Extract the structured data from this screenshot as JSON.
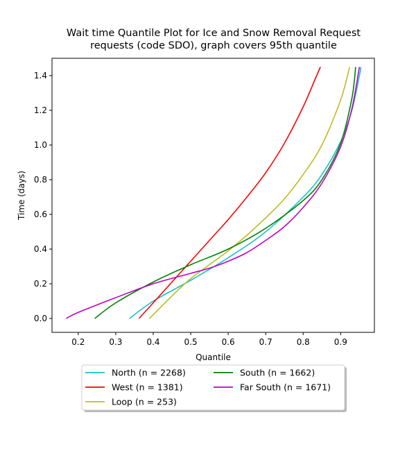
{
  "chart_data": {
    "type": "line",
    "title": "Wait time Quantile Plot for Ice and Snow Removal Request",
    "subtitle": "requests (code SDO), graph covers 95th quantile",
    "xlabel": "Quantile",
    "ylabel": "Time (days)",
    "xlim": [
      0.13,
      0.99
    ],
    "ylim": [
      -0.08,
      1.5
    ],
    "xticks": [
      "0.2",
      "0.3",
      "0.4",
      "0.5",
      "0.6",
      "0.7",
      "0.8",
      "0.9"
    ],
    "yticks": [
      "0.0",
      "0.2",
      "0.4",
      "0.6",
      "0.8",
      "1.0",
      "1.2",
      "1.4"
    ],
    "grid": false,
    "legend_position": "below-center",
    "series": [
      {
        "name": "North (n = 2268)",
        "color": "#17becf",
        "points": [
          [
            0.337,
            0.0
          ],
          [
            0.4,
            0.1
          ],
          [
            0.5,
            0.22
          ],
          [
            0.6,
            0.35
          ],
          [
            0.7,
            0.5
          ],
          [
            0.8,
            0.7
          ],
          [
            0.85,
            0.83
          ],
          [
            0.9,
            1.02
          ],
          [
            0.93,
            1.2
          ],
          [
            0.95,
            1.4
          ],
          [
            0.954,
            1.45
          ]
        ]
      },
      {
        "name": "West (n = 1381)",
        "color": "#ff0000",
        "points": [
          [
            0.362,
            0.0
          ],
          [
            0.4,
            0.09
          ],
          [
            0.45,
            0.21
          ],
          [
            0.5,
            0.33
          ],
          [
            0.55,
            0.45
          ],
          [
            0.6,
            0.57
          ],
          [
            0.65,
            0.7
          ],
          [
            0.7,
            0.84
          ],
          [
            0.75,
            1.01
          ],
          [
            0.8,
            1.22
          ],
          [
            0.83,
            1.37
          ],
          [
            0.846,
            1.45
          ]
        ]
      },
      {
        "name": "Loop (n = 253)",
        "color": "#bcbd22",
        "points": [
          [
            0.39,
            0.0
          ],
          [
            0.45,
            0.13
          ],
          [
            0.5,
            0.23
          ],
          [
            0.55,
            0.31
          ],
          [
            0.6,
            0.39
          ],
          [
            0.65,
            0.48
          ],
          [
            0.7,
            0.58
          ],
          [
            0.75,
            0.69
          ],
          [
            0.8,
            0.83
          ],
          [
            0.85,
            1.0
          ],
          [
            0.9,
            1.26
          ],
          [
            0.924,
            1.45
          ]
        ]
      },
      {
        "name": "South (n = 1662)",
        "color": "#008000",
        "points": [
          [
            0.244,
            0.0
          ],
          [
            0.3,
            0.09
          ],
          [
            0.4,
            0.21
          ],
          [
            0.5,
            0.31
          ],
          [
            0.6,
            0.4
          ],
          [
            0.7,
            0.52
          ],
          [
            0.8,
            0.68
          ],
          [
            0.85,
            0.8
          ],
          [
            0.9,
            1.01
          ],
          [
            0.93,
            1.27
          ],
          [
            0.94,
            1.45
          ]
        ]
      },
      {
        "name": "Far South (n = 1671)",
        "color": "#bf00bf",
        "points": [
          [
            0.168,
            0.0
          ],
          [
            0.2,
            0.035
          ],
          [
            0.3,
            0.12
          ],
          [
            0.4,
            0.2
          ],
          [
            0.5,
            0.26
          ],
          [
            0.55,
            0.29
          ],
          [
            0.6,
            0.33
          ],
          [
            0.65,
            0.38
          ],
          [
            0.7,
            0.45
          ],
          [
            0.75,
            0.53
          ],
          [
            0.8,
            0.64
          ],
          [
            0.85,
            0.78
          ],
          [
            0.9,
            0.99
          ],
          [
            0.93,
            1.21
          ],
          [
            0.95,
            1.45
          ]
        ]
      }
    ]
  }
}
